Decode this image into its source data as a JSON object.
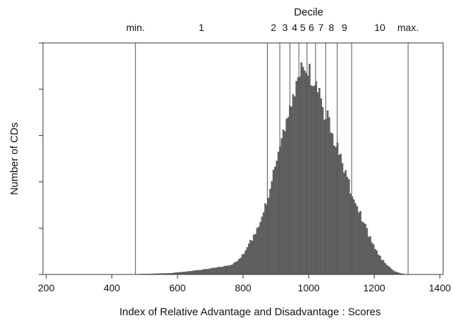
{
  "chart_data": {
    "type": "bar",
    "title": "",
    "xlabel": "Index of Relative Advantage and Disadvantage : Scores",
    "ylabel": "Number of CDs",
    "xlim": [
      190,
      1410
    ],
    "ylim": [
      0,
      1.0
    ],
    "x_ticks": [
      200,
      400,
      600,
      800,
      1000,
      1200,
      1400
    ],
    "y_tick_count": 5,
    "y_tick_labels_shown": false,
    "grid": false,
    "bar_color": "#5f5f5f",
    "decile_title": "Decile",
    "reference_lines": [
      {
        "label": "min.",
        "x": 472
      },
      {
        "label": "",
        "x": 874
      },
      {
        "label": "",
        "x": 912
      },
      {
        "label": "",
        "x": 943
      },
      {
        "label": "",
        "x": 970
      },
      {
        "label": "",
        "x": 995
      },
      {
        "label": "",
        "x": 1021
      },
      {
        "label": "",
        "x": 1052
      },
      {
        "label": "",
        "x": 1087
      },
      {
        "label": "",
        "x": 1131
      },
      {
        "label": "max.",
        "x": 1303
      }
    ],
    "band_labels": [
      {
        "label": "1",
        "x": 673
      },
      {
        "label": "2",
        "x": 893
      },
      {
        "label": "3",
        "x": 928
      },
      {
        "label": "4",
        "x": 957
      },
      {
        "label": "5",
        "x": 982
      },
      {
        "label": "6",
        "x": 1008
      },
      {
        "label": "7",
        "x": 1037
      },
      {
        "label": "8",
        "x": 1069
      },
      {
        "label": "9",
        "x": 1109
      },
      {
        "label": "10",
        "x": 1217
      }
    ],
    "bin_width": 5,
    "profile": [
      [
        470,
        0.0
      ],
      [
        480,
        0.002
      ],
      [
        520,
        0.003
      ],
      [
        580,
        0.006
      ],
      [
        620,
        0.012
      ],
      [
        660,
        0.018
      ],
      [
        700,
        0.025
      ],
      [
        740,
        0.035
      ],
      [
        770,
        0.045
      ],
      [
        790,
        0.07
      ],
      [
        810,
        0.11
      ],
      [
        830,
        0.16
      ],
      [
        850,
        0.22
      ],
      [
        870,
        0.3
      ],
      [
        890,
        0.43
      ],
      [
        910,
        0.55
      ],
      [
        930,
        0.66
      ],
      [
        950,
        0.76
      ],
      [
        970,
        0.85
      ],
      [
        990,
        0.89
      ],
      [
        1000,
        0.87
      ],
      [
        1020,
        0.82
      ],
      [
        1040,
        0.74
      ],
      [
        1060,
        0.66
      ],
      [
        1080,
        0.58
      ],
      [
        1100,
        0.49
      ],
      [
        1120,
        0.4
      ],
      [
        1140,
        0.32
      ],
      [
        1160,
        0.25
      ],
      [
        1180,
        0.18
      ],
      [
        1200,
        0.12
      ],
      [
        1220,
        0.07
      ],
      [
        1240,
        0.04
      ],
      [
        1260,
        0.015
      ],
      [
        1280,
        0.005
      ],
      [
        1300,
        0.0
      ]
    ]
  }
}
